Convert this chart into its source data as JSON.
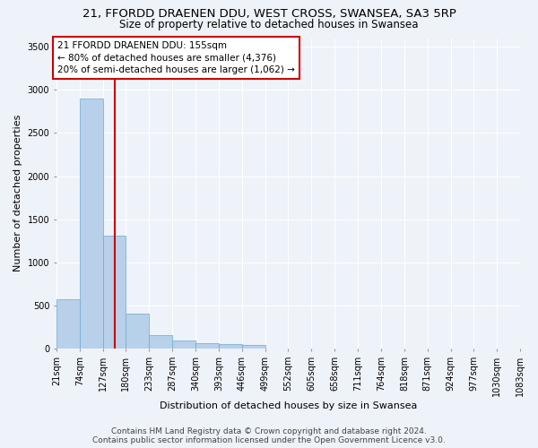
{
  "title": "21, FFORDD DRAENEN DDU, WEST CROSS, SWANSEA, SA3 5RP",
  "subtitle": "Size of property relative to detached houses in Swansea",
  "xlabel": "Distribution of detached houses by size in Swansea",
  "ylabel": "Number of detached properties",
  "bar_color": "#b8d0ea",
  "bar_edge_color": "#6aaad4",
  "vline_color": "#cc0000",
  "vline_x": 155,
  "annotation_text": "21 FFORDD DRAENEN DDU: 155sqm\n← 80% of detached houses are smaller (4,376)\n20% of semi-detached houses are larger (1,062) →",
  "annotation_box_color": "#cc0000",
  "bins": [
    21,
    74,
    127,
    180,
    233,
    287,
    340,
    393,
    446,
    499,
    552,
    605,
    658,
    711,
    764,
    818,
    871,
    924,
    977,
    1030,
    1083
  ],
  "bin_labels": [
    "21sqm",
    "74sqm",
    "127sqm",
    "180sqm",
    "233sqm",
    "287sqm",
    "340sqm",
    "393sqm",
    "446sqm",
    "499sqm",
    "552sqm",
    "605sqm",
    "658sqm",
    "711sqm",
    "764sqm",
    "818sqm",
    "871sqm",
    "924sqm",
    "977sqm",
    "1030sqm",
    "1083sqm"
  ],
  "bar_heights": [
    570,
    2900,
    1310,
    410,
    155,
    90,
    60,
    50,
    40,
    0,
    0,
    0,
    0,
    0,
    0,
    0,
    0,
    0,
    0,
    0
  ],
  "ylim": [
    0,
    3600
  ],
  "yticks": [
    0,
    500,
    1000,
    1500,
    2000,
    2500,
    3000,
    3500
  ],
  "footer": "Contains HM Land Registry data © Crown copyright and database right 2024.\nContains public sector information licensed under the Open Government Licence v3.0.",
  "background_color": "#eef2f9",
  "grid_color": "#ffffff",
  "title_fontsize": 9.5,
  "subtitle_fontsize": 8.5,
  "xlabel_fontsize": 8,
  "ylabel_fontsize": 8,
  "tick_fontsize": 7,
  "footer_fontsize": 6.5,
  "annotation_fontsize": 7.5
}
